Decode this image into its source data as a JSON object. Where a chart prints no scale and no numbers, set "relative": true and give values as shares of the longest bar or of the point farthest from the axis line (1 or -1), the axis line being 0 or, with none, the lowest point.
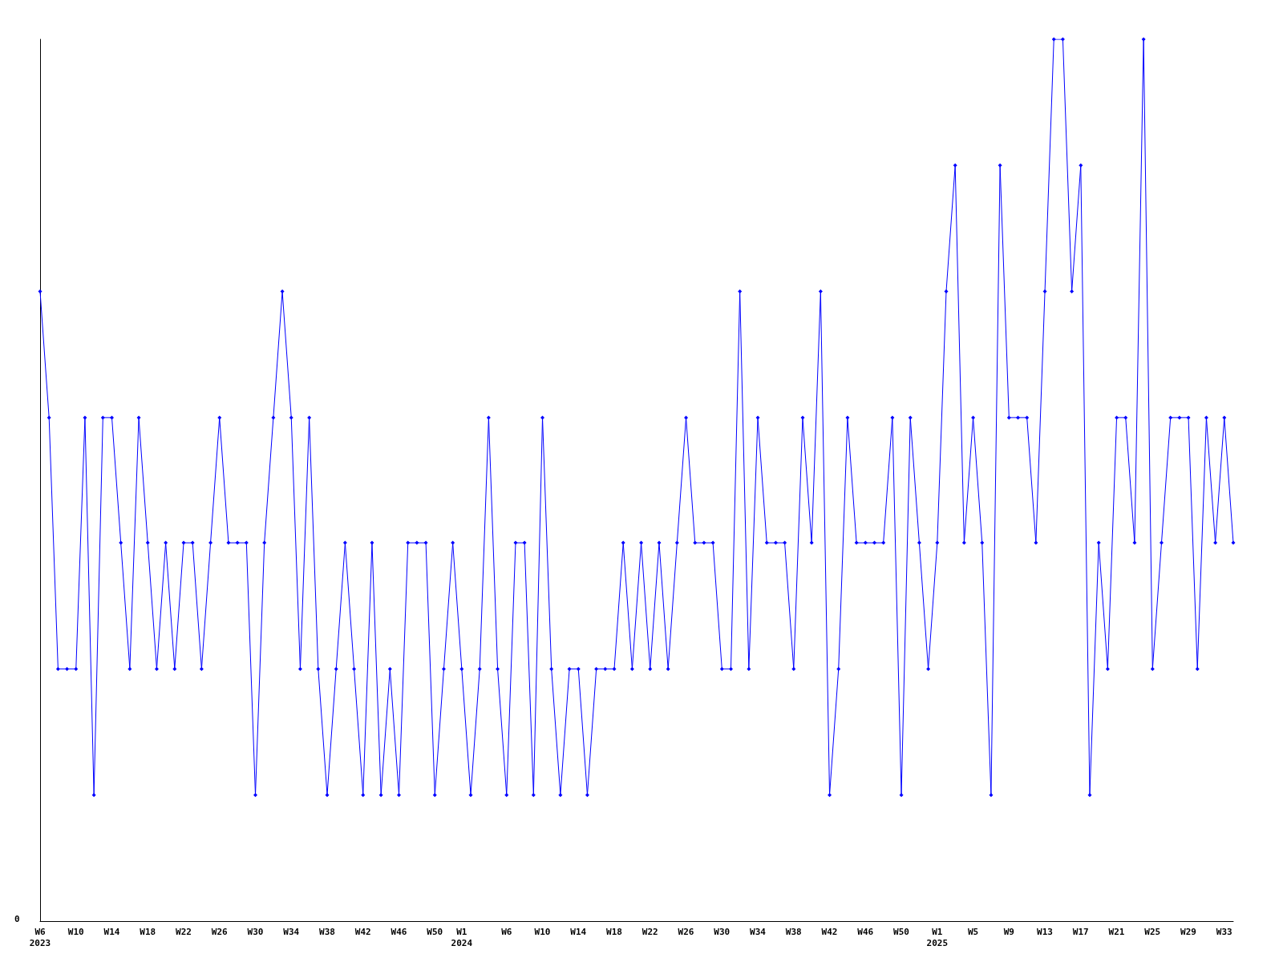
{
  "chart_data": {
    "type": "line",
    "relative": true,
    "annotations": [
      "0"
    ],
    "color": "#0000ff",
    "marker": "diamond",
    "line_style": "solid",
    "grid": false,
    "categories": [
      "W6\n2023",
      null,
      null,
      null,
      "W10",
      null,
      null,
      null,
      "W14",
      null,
      null,
      null,
      "W18",
      null,
      null,
      null,
      "W22",
      null,
      null,
      null,
      "W26",
      null,
      null,
      null,
      "W30",
      null,
      null,
      null,
      "W34",
      null,
      null,
      null,
      "W38",
      null,
      null,
      null,
      "W42",
      null,
      null,
      null,
      "W46",
      null,
      null,
      null,
      "W50",
      null,
      null,
      "W1\n2024",
      null,
      null,
      null,
      null,
      "W6",
      null,
      null,
      null,
      "W10",
      null,
      null,
      null,
      "W14",
      null,
      null,
      null,
      "W18",
      null,
      null,
      null,
      "W22",
      null,
      null,
      null,
      "W26",
      null,
      null,
      null,
      "W30",
      null,
      null,
      null,
      "W34",
      null,
      null,
      null,
      "W38",
      null,
      null,
      null,
      "W42",
      null,
      null,
      null,
      "W46",
      null,
      null,
      null,
      "W50",
      null,
      null,
      null,
      "W1\n2025",
      null,
      null,
      null,
      "W5",
      null,
      null,
      null,
      "W9",
      null,
      null,
      null,
      "W13",
      null,
      null,
      null,
      "W17",
      null,
      null,
      null,
      "W21",
      null,
      null,
      null,
      "W25",
      null,
      null,
      null,
      "W29",
      null,
      null,
      null,
      "W33",
      null
    ],
    "values": [
      0.714,
      0.571,
      0.286,
      0.286,
      0.286,
      0.571,
      0.143,
      0.571,
      0.571,
      0.429,
      0.286,
      0.571,
      0.429,
      0.286,
      0.429,
      0.286,
      0.429,
      0.429,
      0.286,
      0.429,
      0.571,
      0.429,
      0.429,
      0.429,
      0.143,
      0.429,
      0.571,
      0.714,
      0.571,
      0.286,
      0.571,
      0.286,
      0.143,
      0.286,
      0.429,
      0.286,
      0.143,
      0.429,
      0.143,
      0.286,
      0.143,
      0.429,
      0.429,
      0.429,
      0.143,
      0.286,
      0.429,
      0.286,
      0.143,
      0.286,
      0.571,
      0.286,
      0.143,
      0.429,
      0.429,
      0.143,
      0.571,
      0.286,
      0.143,
      0.286,
      0.286,
      0.143,
      0.286,
      0.286,
      0.286,
      0.429,
      0.286,
      0.429,
      0.286,
      0.429,
      0.286,
      0.429,
      0.571,
      0.429,
      0.429,
      0.429,
      0.286,
      0.286,
      0.714,
      0.286,
      0.571,
      0.429,
      0.429,
      0.429,
      0.286,
      0.571,
      0.429,
      0.714,
      0.143,
      0.286,
      0.571,
      0.429,
      0.429,
      0.429,
      0.429,
      0.571,
      0.143,
      0.571,
      0.429,
      0.286,
      0.429,
      0.714,
      0.857,
      0.429,
      0.571,
      0.429,
      0.143,
      0.857,
      0.571,
      0.571,
      0.571,
      0.429,
      0.714,
      1,
      1,
      0.714,
      0.857,
      0.143,
      0.429,
      0.286,
      0.571,
      0.571,
      0.429,
      1,
      0.286,
      0.429,
      0.571,
      0.571,
      0.571,
      0.286,
      0.571,
      0.429,
      0.571,
      0.429
    ]
  }
}
